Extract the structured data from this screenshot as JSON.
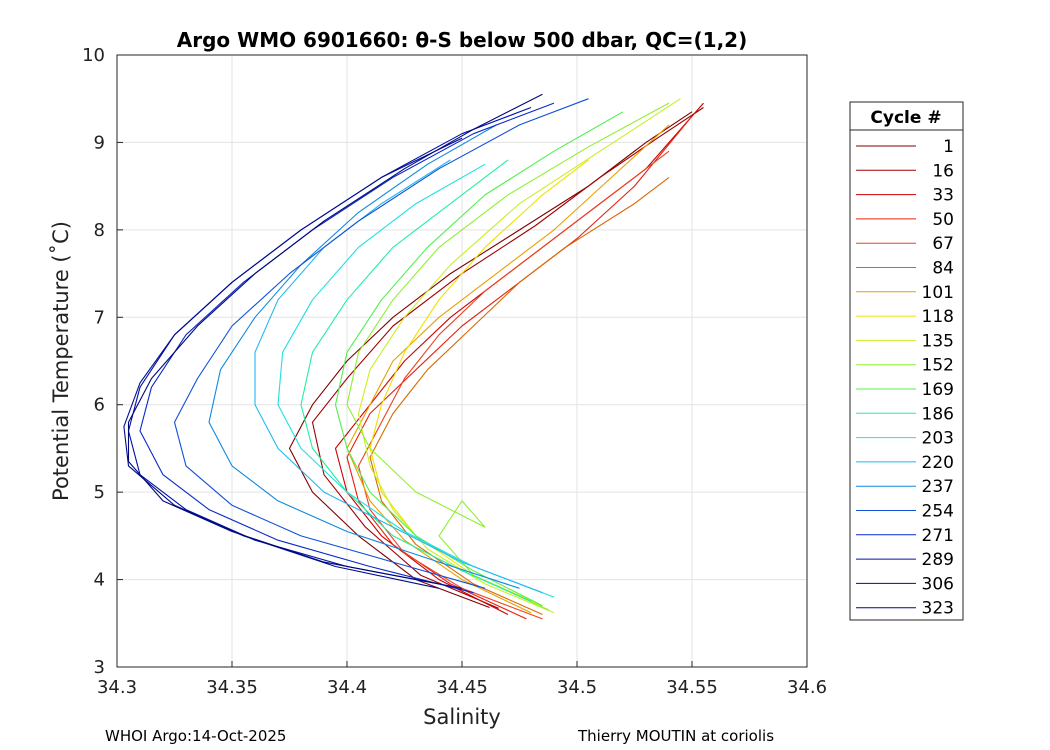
{
  "chart_data": {
    "type": "line",
    "title": "Argo WMO 6901660: θ-S below 500 dbar,  QC=(1,2)",
    "xlabel": "Salinity",
    "ylabel": "Potential Temperature (˚C)",
    "xlim": [
      34.3,
      34.6
    ],
    "ylim": [
      3,
      10
    ],
    "xticks": [
      "34.3",
      "34.35",
      "34.4",
      "34.45",
      "34.5",
      "34.55",
      "34.6"
    ],
    "yticks": [
      "3",
      "4",
      "5",
      "6",
      "7",
      "8",
      "9",
      "10"
    ],
    "grid": true,
    "legend": {
      "title": "Cycle #",
      "placement": "outside-right",
      "entries": [
        {
          "label": "1",
          "color": "#800000"
        },
        {
          "label": "16",
          "color": "#a00000"
        },
        {
          "label": "33",
          "color": "#cc0000"
        },
        {
          "label": "50",
          "color": "#e52010"
        },
        {
          "label": "67",
          "color": "#ee4020"
        },
        {
          "label": "84",
          "color": "#d86a00"
        },
        {
          "label": "101",
          "color": "#e8a000"
        },
        {
          "label": "118",
          "color": "#f0e000"
        },
        {
          "label": "135",
          "color": "#c8f020"
        },
        {
          "label": "152",
          "color": "#90f030"
        },
        {
          "label": "169",
          "color": "#50f050"
        },
        {
          "label": "186",
          "color": "#20f0a0"
        },
        {
          "label": "203",
          "color": "#20e0e0"
        },
        {
          "label": "220",
          "color": "#20b8f0"
        },
        {
          "label": "237",
          "color": "#1088e0"
        },
        {
          "label": "254",
          "color": "#1050d8"
        },
        {
          "label": "271",
          "color": "#0828c8"
        },
        {
          "label": "289",
          "color": "#0010a8"
        },
        {
          "label": "306",
          "color": "#000c90"
        },
        {
          "label": "323",
          "color": "#000878"
        }
      ]
    },
    "series": [
      {
        "name": "1",
        "color": "#800000",
        "points": [
          [
            34.462,
            3.68
          ],
          [
            34.43,
            4.0
          ],
          [
            34.405,
            4.5
          ],
          [
            34.385,
            5.0
          ],
          [
            34.375,
            5.5
          ],
          [
            34.385,
            6.0
          ],
          [
            34.4,
            6.5
          ],
          [
            34.42,
            7.0
          ],
          [
            34.445,
            7.5
          ],
          [
            34.475,
            8.0
          ],
          [
            34.505,
            8.5
          ],
          [
            34.53,
            9.0
          ],
          [
            34.55,
            9.35
          ]
        ]
      },
      {
        "name": "16",
        "color": "#a00000",
        "points": [
          [
            34.466,
            3.67
          ],
          [
            34.432,
            4.05
          ],
          [
            34.408,
            4.6
          ],
          [
            34.39,
            5.2
          ],
          [
            34.385,
            5.8
          ],
          [
            34.4,
            6.3
          ],
          [
            34.42,
            6.9
          ],
          [
            34.45,
            7.5
          ],
          [
            34.482,
            8.05
          ],
          [
            34.51,
            8.6
          ],
          [
            34.535,
            9.05
          ],
          [
            34.555,
            9.4
          ]
        ]
      },
      {
        "name": "33",
        "color": "#cc0000",
        "points": [
          [
            34.47,
            3.6
          ],
          [
            34.44,
            4.0
          ],
          [
            34.415,
            4.5
          ],
          [
            34.4,
            5.0
          ],
          [
            34.395,
            5.5
          ],
          [
            34.41,
            6.0
          ],
          [
            34.425,
            6.5
          ],
          [
            34.445,
            7.0
          ],
          [
            34.47,
            7.5
          ],
          [
            34.5,
            8.1
          ],
          [
            34.53,
            8.7
          ],
          [
            34.555,
            9.45
          ]
        ]
      },
      {
        "name": "50",
        "color": "#e52010",
        "points": [
          [
            34.478,
            3.55
          ],
          [
            34.445,
            3.95
          ],
          [
            34.42,
            4.4
          ],
          [
            34.405,
            4.9
          ],
          [
            34.4,
            5.4
          ],
          [
            34.41,
            5.9
          ],
          [
            34.43,
            6.4
          ],
          [
            34.45,
            6.9
          ],
          [
            34.475,
            7.4
          ],
          [
            34.5,
            7.9
          ],
          [
            34.525,
            8.5
          ],
          [
            34.55,
            9.3
          ]
        ]
      },
      {
        "name": "67",
        "color": "#ee4020",
        "points": [
          [
            34.485,
            3.55
          ],
          [
            34.45,
            3.9
          ],
          [
            34.425,
            4.3
          ],
          [
            34.41,
            4.8
          ],
          [
            34.405,
            5.3
          ],
          [
            34.415,
            5.8
          ],
          [
            34.425,
            6.3
          ],
          [
            34.44,
            6.8
          ],
          [
            34.46,
            7.3
          ],
          [
            34.485,
            7.8
          ],
          [
            34.51,
            8.3
          ],
          [
            34.54,
            8.9
          ]
        ]
      },
      {
        "name": "84",
        "color": "#d86a00",
        "points": [
          [
            34.485,
            3.6
          ],
          [
            34.455,
            3.95
          ],
          [
            34.43,
            4.4
          ],
          [
            34.415,
            4.9
          ],
          [
            34.41,
            5.4
          ],
          [
            34.42,
            5.9
          ],
          [
            34.435,
            6.4
          ],
          [
            34.455,
            6.9
          ],
          [
            34.475,
            7.4
          ],
          [
            34.495,
            7.8
          ],
          [
            34.525,
            8.3
          ],
          [
            34.54,
            8.6
          ]
        ]
      },
      {
        "name": "101",
        "color": "#e8a000",
        "points": [
          [
            34.48,
            3.62
          ],
          [
            34.45,
            4.0
          ],
          [
            34.425,
            4.45
          ],
          [
            34.41,
            4.9
          ],
          [
            34.4,
            5.5
          ],
          [
            34.41,
            6.0
          ],
          [
            34.42,
            6.5
          ],
          [
            34.44,
            7.0
          ],
          [
            34.465,
            7.5
          ],
          [
            34.49,
            8.0
          ],
          [
            34.515,
            8.6
          ],
          [
            34.54,
            9.2
          ]
        ]
      },
      {
        "name": "118",
        "color": "#f0e000",
        "points": [
          [
            34.485,
            3.7
          ],
          [
            34.455,
            4.05
          ],
          [
            34.43,
            4.5
          ],
          [
            34.415,
            5.0
          ],
          [
            34.41,
            5.5
          ],
          [
            34.415,
            6.0
          ],
          [
            34.425,
            6.6
          ],
          [
            34.44,
            7.2
          ],
          [
            34.46,
            7.8
          ],
          [
            34.485,
            8.4
          ],
          [
            34.505,
            8.8
          ]
        ]
      },
      {
        "name": "135",
        "color": "#c8f020",
        "points": [
          [
            34.49,
            3.62
          ],
          [
            34.46,
            3.95
          ],
          [
            34.435,
            4.35
          ],
          [
            34.42,
            4.8
          ],
          [
            34.41,
            5.3
          ],
          [
            34.405,
            5.9
          ],
          [
            34.41,
            6.4
          ],
          [
            34.425,
            7.0
          ],
          [
            34.445,
            7.6
          ],
          [
            34.475,
            8.3
          ],
          [
            34.51,
            8.9
          ],
          [
            34.545,
            9.5
          ]
        ]
      },
      {
        "name": "152",
        "color": "#90f030",
        "points": [
          [
            34.488,
            3.65
          ],
          [
            34.455,
            4.05
          ],
          [
            34.44,
            4.5
          ],
          [
            34.45,
            4.9
          ],
          [
            34.46,
            4.6
          ],
          [
            34.43,
            5.0
          ],
          [
            34.41,
            5.5
          ],
          [
            34.4,
            6.0
          ],
          [
            34.405,
            6.6
          ],
          [
            34.42,
            7.2
          ],
          [
            34.44,
            7.8
          ],
          [
            34.47,
            8.4
          ],
          [
            34.505,
            8.95
          ],
          [
            34.54,
            9.45
          ]
        ]
      },
      {
        "name": "169",
        "color": "#50f050",
        "points": [
          [
            34.485,
            3.7
          ],
          [
            34.455,
            4.1
          ],
          [
            34.43,
            4.5
          ],
          [
            34.41,
            5.0
          ],
          [
            34.4,
            5.5
          ],
          [
            34.395,
            6.0
          ],
          [
            34.4,
            6.6
          ],
          [
            34.415,
            7.2
          ],
          [
            34.435,
            7.8
          ],
          [
            34.46,
            8.4
          ],
          [
            34.49,
            8.9
          ],
          [
            34.52,
            9.35
          ]
        ]
      },
      {
        "name": "186",
        "color": "#20f0a0",
        "points": [
          [
            34.48,
            3.75
          ],
          [
            34.45,
            4.1
          ],
          [
            34.42,
            4.5
          ],
          [
            34.4,
            5.0
          ],
          [
            34.385,
            5.5
          ],
          [
            34.38,
            6.0
          ],
          [
            34.385,
            6.6
          ],
          [
            34.4,
            7.2
          ],
          [
            34.42,
            7.8
          ],
          [
            34.445,
            8.3
          ],
          [
            34.47,
            8.8
          ]
        ]
      },
      {
        "name": "203",
        "color": "#20e0e0",
        "points": [
          [
            34.49,
            3.8
          ],
          [
            34.455,
            4.15
          ],
          [
            34.425,
            4.55
          ],
          [
            34.4,
            5.0
          ],
          [
            34.38,
            5.5
          ],
          [
            34.37,
            6.0
          ],
          [
            34.372,
            6.6
          ],
          [
            34.385,
            7.2
          ],
          [
            34.405,
            7.8
          ],
          [
            34.43,
            8.3
          ],
          [
            34.46,
            8.75
          ]
        ]
      },
      {
        "name": "220",
        "color": "#20b8f0",
        "points": [
          [
            34.485,
            3.85
          ],
          [
            34.45,
            4.2
          ],
          [
            34.42,
            4.6
          ],
          [
            34.39,
            5.0
          ],
          [
            34.37,
            5.5
          ],
          [
            34.36,
            6.0
          ],
          [
            34.36,
            6.6
          ],
          [
            34.37,
            7.2
          ],
          [
            34.39,
            7.8
          ],
          [
            34.415,
            8.3
          ],
          [
            34.445,
            8.8
          ]
        ]
      },
      {
        "name": "237",
        "color": "#1088e0",
        "points": [
          [
            34.475,
            3.9
          ],
          [
            34.44,
            4.2
          ],
          [
            34.4,
            4.55
          ],
          [
            34.37,
            4.9
          ],
          [
            34.35,
            5.3
          ],
          [
            34.34,
            5.8
          ],
          [
            34.345,
            6.4
          ],
          [
            34.36,
            7.0
          ],
          [
            34.38,
            7.6
          ],
          [
            34.405,
            8.2
          ],
          [
            34.435,
            8.75
          ],
          [
            34.465,
            9.2
          ]
        ]
      },
      {
        "name": "254",
        "color": "#1050d8",
        "points": [
          [
            34.46,
            3.9
          ],
          [
            34.42,
            4.2
          ],
          [
            34.38,
            4.5
          ],
          [
            34.35,
            4.85
          ],
          [
            34.33,
            5.3
          ],
          [
            34.325,
            5.8
          ],
          [
            34.335,
            6.3
          ],
          [
            34.35,
            6.9
          ],
          [
            34.375,
            7.5
          ],
          [
            34.405,
            8.1
          ],
          [
            34.44,
            8.7
          ],
          [
            34.475,
            9.2
          ],
          [
            34.505,
            9.5
          ]
        ]
      },
      {
        "name": "271",
        "color": "#0828c8",
        "points": [
          [
            34.455,
            3.85
          ],
          [
            34.41,
            4.15
          ],
          [
            34.37,
            4.45
          ],
          [
            34.34,
            4.8
          ],
          [
            34.32,
            5.2
          ],
          [
            34.31,
            5.7
          ],
          [
            34.315,
            6.2
          ],
          [
            34.33,
            6.8
          ],
          [
            34.355,
            7.4
          ],
          [
            34.385,
            8.0
          ],
          [
            34.42,
            8.6
          ],
          [
            34.455,
            9.1
          ],
          [
            34.49,
            9.45
          ]
        ]
      },
      {
        "name": "289",
        "color": "#0010a8",
        "points": [
          [
            34.45,
            3.9
          ],
          [
            34.4,
            4.15
          ],
          [
            34.36,
            4.45
          ],
          [
            34.33,
            4.8
          ],
          [
            34.31,
            5.2
          ],
          [
            34.305,
            5.7
          ],
          [
            34.31,
            6.2
          ],
          [
            34.325,
            6.8
          ],
          [
            34.35,
            7.4
          ],
          [
            34.38,
            8.0
          ],
          [
            34.415,
            8.6
          ],
          [
            34.45,
            9.1
          ],
          [
            34.48,
            9.4
          ]
        ]
      },
      {
        "name": "306",
        "color": "#000c90",
        "points": [
          [
            34.44,
            3.9
          ],
          [
            34.395,
            4.15
          ],
          [
            34.355,
            4.5
          ],
          [
            34.325,
            4.85
          ],
          [
            34.305,
            5.3
          ],
          [
            34.303,
            5.75
          ],
          [
            34.31,
            6.25
          ],
          [
            34.325,
            6.8
          ],
          [
            34.35,
            7.4
          ],
          [
            34.38,
            8.0
          ],
          [
            34.415,
            8.6
          ],
          [
            34.45,
            9.05
          ]
        ]
      },
      {
        "name": "323",
        "color": "#000878",
        "points": [
          [
            34.44,
            3.95
          ],
          [
            34.39,
            4.2
          ],
          [
            34.35,
            4.55
          ],
          [
            34.32,
            4.9
          ],
          [
            34.305,
            5.35
          ],
          [
            34.305,
            5.8
          ],
          [
            34.315,
            6.3
          ],
          [
            34.335,
            6.9
          ],
          [
            34.36,
            7.5
          ],
          [
            34.39,
            8.1
          ],
          [
            34.425,
            8.7
          ],
          [
            34.455,
            9.15
          ],
          [
            34.485,
            9.55
          ]
        ]
      }
    ]
  },
  "footer": {
    "left": "WHOI Argo:14-Oct-2025",
    "right": "Thierry MOUTIN at coriolis"
  }
}
